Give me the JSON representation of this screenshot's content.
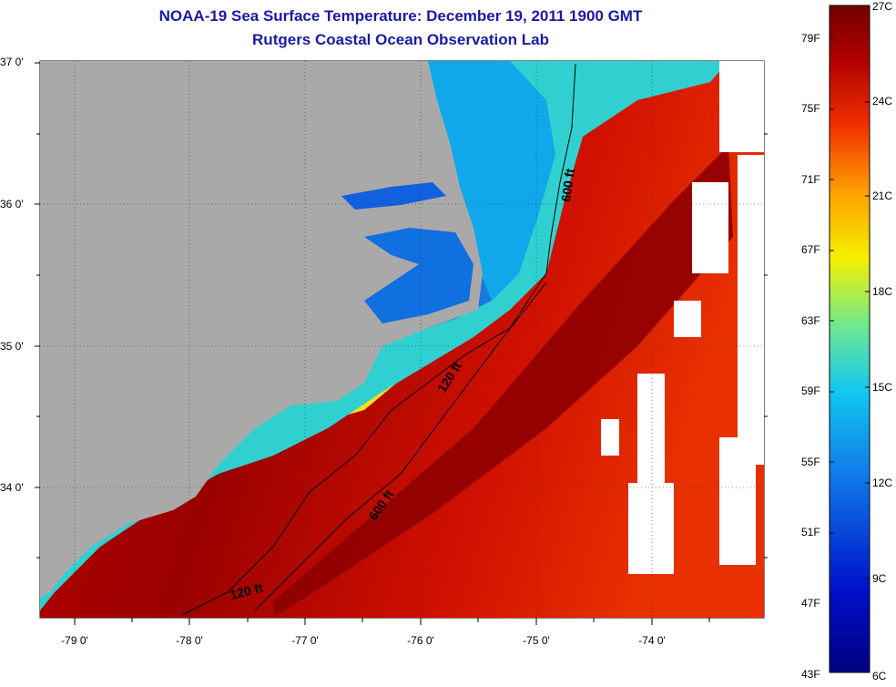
{
  "header": {
    "title": "NOAA-19 Sea Surface Temperature:  December 19, 2011 1900 GMT",
    "subtitle": "Rutgers Coastal Ocean Observation Lab"
  },
  "map": {
    "lat_labels": [
      "37 0'",
      "36 0'",
      "35 0'",
      "34 0'"
    ],
    "lon_labels": [
      "-79 0'",
      "-78 0'",
      "-77 0'",
      "-76 0'",
      "-75 0'",
      "-74 0'"
    ],
    "contour_labels": [
      "600 ft",
      "120 ft",
      "600 ft",
      "120 ft"
    ]
  },
  "colorbar": {
    "fahrenheit_labels": [
      "79F",
      "75F",
      "71F",
      "67F",
      "63F",
      "59F",
      "55F",
      "51F",
      "47F",
      "43F"
    ],
    "celsius_labels": [
      "27C",
      "24C",
      "21C",
      "18C",
      "15C",
      "12C",
      "9C",
      "6C"
    ],
    "colors": [
      "#7a0000",
      "#b40000",
      "#e02000",
      "#ff6a00",
      "#ffb000",
      "#f4f000",
      "#a0e840",
      "#30e0c0",
      "#10c0f0",
      "#1080e8",
      "#1040d0",
      "#0010b0",
      "#000080"
    ]
  },
  "colors": {
    "land": "#a9a9a9",
    "title": "#1a1aa6"
  }
}
